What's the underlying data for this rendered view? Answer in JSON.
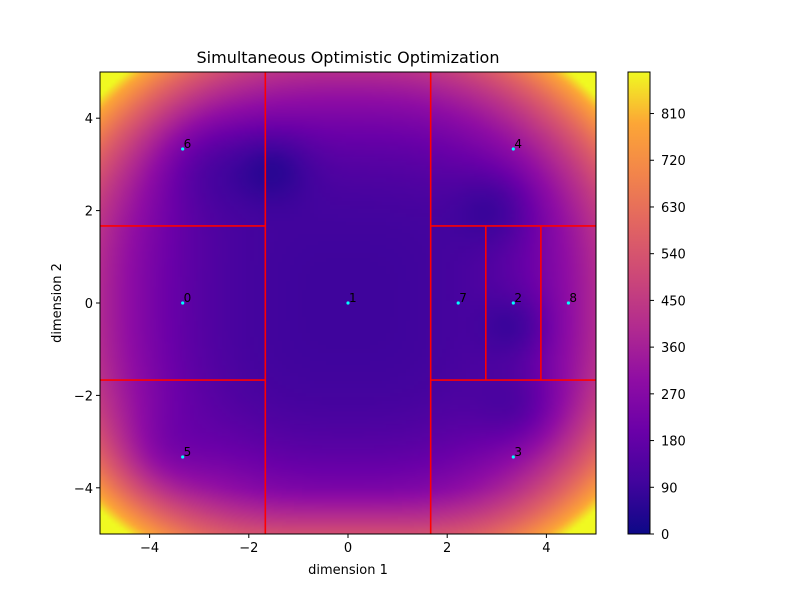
{
  "chart_data": {
    "type": "heatmap",
    "title": "Simultaneous Optimistic Optimization",
    "xlabel": "dimension 1",
    "ylabel": "dimension 2",
    "xlim": [
      -5,
      5
    ],
    "ylim": [
      -5,
      5
    ],
    "x_ticks": [
      -4,
      -2,
      0,
      2,
      4
    ],
    "x_tick_labels": [
      "−4",
      "−2",
      "0",
      "2",
      "4"
    ],
    "y_ticks": [
      -4,
      -2,
      0,
      2,
      4
    ],
    "y_tick_labels": [
      "−4",
      "−2",
      "0",
      "2",
      "4"
    ],
    "colorbar": {
      "colormap": "plasma",
      "vmin": 0,
      "vmax": 890,
      "ticks": [
        0,
        90,
        180,
        270,
        360,
        450,
        540,
        630,
        720,
        810
      ],
      "tick_labels": [
        "0",
        "90",
        "180",
        "270",
        "360",
        "450",
        "540",
        "630",
        "720",
        "810"
      ]
    },
    "grid": false,
    "partition_lines": [
      {
        "x1": -1.667,
        "y1": -5,
        "x2": -1.667,
        "y2": 5
      },
      {
        "x1": 1.667,
        "y1": -5,
        "x2": 1.667,
        "y2": 5
      },
      {
        "x1": -5,
        "y1": 1.667,
        "x2": -1.667,
        "y2": 1.667
      },
      {
        "x1": -5,
        "y1": -1.667,
        "x2": -1.667,
        "y2": -1.667
      },
      {
        "x1": 1.667,
        "y1": 1.667,
        "x2": 5,
        "y2": 1.667
      },
      {
        "x1": 1.667,
        "y1": -1.667,
        "x2": 5,
        "y2": -1.667
      },
      {
        "x1": 2.778,
        "y1": -1.667,
        "x2": 2.778,
        "y2": 1.667
      },
      {
        "x1": 3.889,
        "y1": -1.667,
        "x2": 3.889,
        "y2": 1.667
      }
    ],
    "points": [
      {
        "label": "0",
        "x": -3.333,
        "y": 0
      },
      {
        "label": "1",
        "x": 0,
        "y": 0
      },
      {
        "label": "2",
        "x": 3.333,
        "y": 0
      },
      {
        "label": "3",
        "x": 3.333,
        "y": -3.333
      },
      {
        "label": "4",
        "x": 3.333,
        "y": 3.333
      },
      {
        "label": "5",
        "x": -3.333,
        "y": -3.333
      },
      {
        "label": "6",
        "x": -3.333,
        "y": 3.333
      },
      {
        "label": "7",
        "x": 2.222,
        "y": 0
      },
      {
        "label": "8",
        "x": 4.444,
        "y": 0
      }
    ],
    "colors": {
      "partition_line": "#ff0000",
      "point": "#00ffff"
    }
  }
}
